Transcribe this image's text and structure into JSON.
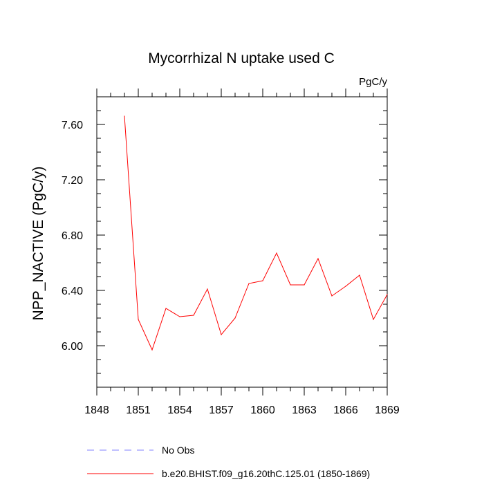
{
  "chart_data": {
    "type": "line",
    "title": "Mycorrhizal N uptake used C",
    "units": "PgC/y",
    "ylabel": "NPP_NACTIVE  (PgC/y)",
    "xlabel": "",
    "xlim": [
      1848,
      1869
    ],
    "ylim": [
      5.7,
      7.8
    ],
    "xticks": [
      1848,
      1851,
      1854,
      1857,
      1860,
      1863,
      1866,
      1869
    ],
    "xtick_labels": [
      "1848",
      "1851",
      "1854",
      "1857",
      "1860",
      "1863",
      "1866",
      "1869"
    ],
    "yticks": [
      6.0,
      6.4,
      6.8,
      7.2,
      7.6
    ],
    "ytick_labels": [
      "6.00",
      "6.40",
      "6.80",
      "7.20",
      "7.60"
    ],
    "x": [
      1850,
      1851,
      1852,
      1853,
      1854,
      1855,
      1856,
      1857,
      1858,
      1859,
      1860,
      1861,
      1862,
      1863,
      1864,
      1865,
      1866,
      1867,
      1868,
      1869
    ],
    "series": [
      {
        "name": "b.e20.BHIST.f09_g16.20thC.125.01 (1850-1869)",
        "color": "#ff0000",
        "style": "solid",
        "values": [
          7.66,
          6.19,
          5.97,
          6.27,
          6.21,
          6.22,
          6.41,
          6.08,
          6.2,
          6.45,
          6.47,
          6.67,
          6.44,
          6.44,
          6.63,
          6.36,
          6.43,
          6.51,
          6.19,
          6.37
        ]
      }
    ],
    "legend": [
      {
        "label": "No Obs",
        "color": "#8080ff",
        "style": "dashed"
      },
      {
        "label": "b.e20.BHIST.f09_g16.20thC.125.01 (1850-1869)",
        "color": "#ff0000",
        "style": "solid"
      }
    ],
    "legend_position": "bottom-left",
    "grid": false
  }
}
